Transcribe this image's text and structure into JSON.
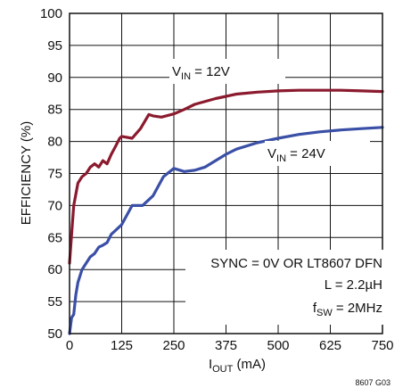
{
  "chart_data": {
    "type": "line",
    "xlabel": {
      "main": "I",
      "sub": "OUT",
      "rest": " (mA)"
    },
    "ylabel": "EFFICIENCY (%)",
    "xlim": [
      0,
      750
    ],
    "ylim": [
      50,
      100
    ],
    "xticks": [
      "0",
      "125",
      "250",
      "375",
      "500",
      "625",
      "750"
    ],
    "yticks": [
      "50",
      "55",
      "60",
      "65",
      "70",
      "75",
      "80",
      "85",
      "90",
      "95",
      "100"
    ],
    "grid": true,
    "series": [
      {
        "name": "VIN = 12V",
        "color": "#8b1a2e",
        "x": [
          0,
          5,
          10,
          20,
          30,
          40,
          50,
          60,
          70,
          80,
          90,
          100,
          110,
          120,
          125,
          150,
          170,
          190,
          200,
          220,
          250,
          275,
          300,
          350,
          400,
          450,
          500,
          550,
          600,
          650,
          700,
          750
        ],
        "y": [
          61,
          65.5,
          70,
          73.5,
          74.5,
          75,
          76,
          76.5,
          76,
          77,
          76.5,
          78,
          79.2,
          80.5,
          80.8,
          80.5,
          82,
          84.2,
          84,
          83.8,
          84.3,
          85,
          85.8,
          86.7,
          87.4,
          87.7,
          87.9,
          88,
          88,
          88,
          87.9,
          87.8
        ]
      },
      {
        "name": "VIN = 24V",
        "color": "#3a4fa6",
        "x": [
          0,
          5,
          10,
          15,
          20,
          30,
          40,
          50,
          60,
          70,
          80,
          90,
          100,
          125,
          150,
          175,
          200,
          225,
          250,
          275,
          300,
          325,
          350,
          375,
          400,
          450,
          500,
          550,
          600,
          650,
          700,
          750
        ],
        "y": [
          50,
          52.5,
          53,
          56,
          58,
          60,
          61,
          62,
          62.5,
          63.5,
          63.8,
          64.2,
          65.5,
          67,
          70,
          70,
          71.5,
          74.5,
          75.8,
          75.3,
          75.5,
          76,
          77,
          78,
          78.8,
          79.8,
          80.5,
          81.1,
          81.5,
          81.8,
          82,
          82.2
        ]
      }
    ],
    "labels": [
      {
        "main": "V",
        "sub": "IN",
        "rest": " = 12V"
      },
      {
        "main": "V",
        "sub": "IN",
        "rest": " = 24V"
      }
    ],
    "conditions": [
      {
        "main": "SYNC = 0V OR LT8607 DFN",
        "sub": "",
        "rest": ""
      },
      {
        "main": "L = 2.2µH",
        "sub": "",
        "rest": ""
      },
      {
        "main": "f",
        "sub": "SW",
        "rest": " = 2MHz"
      }
    ],
    "figure_id": "8607 G03",
    "colors": {
      "grid": "#111111",
      "axis": "#111111"
    }
  }
}
